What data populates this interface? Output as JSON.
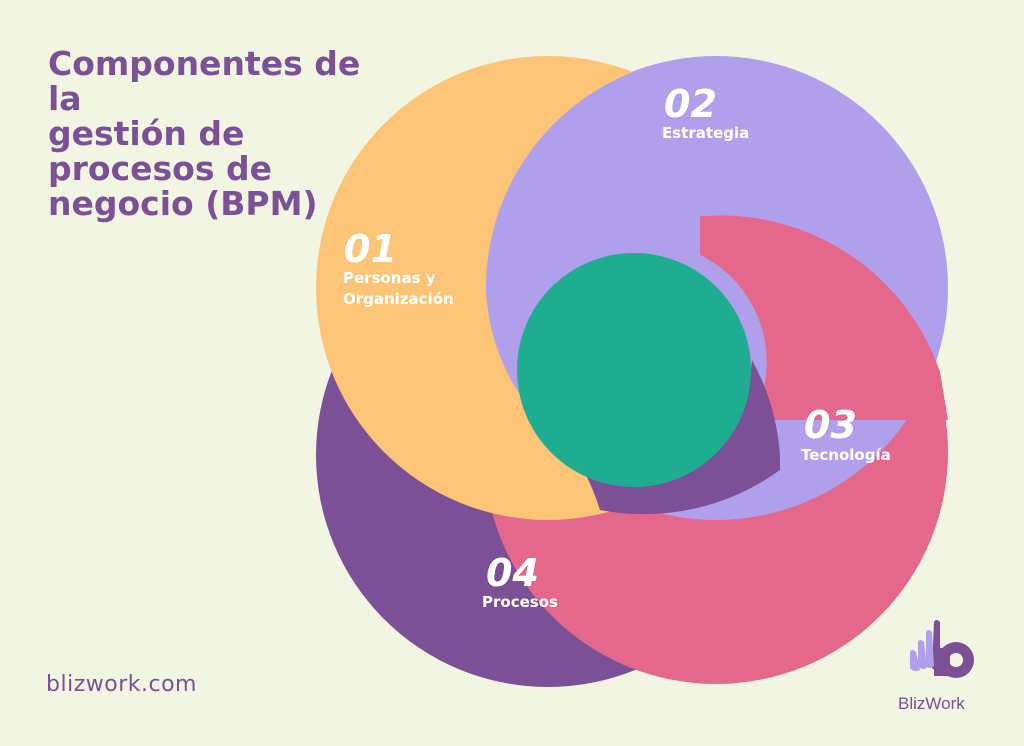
{
  "title_lines": [
    "Componentes de la",
    "gestión de",
    "procesos de",
    "negocio (BPM)"
  ],
  "site": "blizwork.com",
  "logo_text": "BlizWork",
  "components": [
    {
      "number": "01",
      "label_lines": [
        "Personas y",
        "Organización"
      ],
      "color": "#fcc476"
    },
    {
      "number": "02",
      "label_lines": [
        "Estrategia"
      ],
      "color": "#b0a0ec"
    },
    {
      "number": "03",
      "label_lines": [
        "Tecnología"
      ],
      "color": "#e3688c"
    },
    {
      "number": "04",
      "label_lines": [
        "Procesos"
      ],
      "color": "#7b5096"
    }
  ],
  "center_color": "#1fad92",
  "background": "#f1f5e2"
}
